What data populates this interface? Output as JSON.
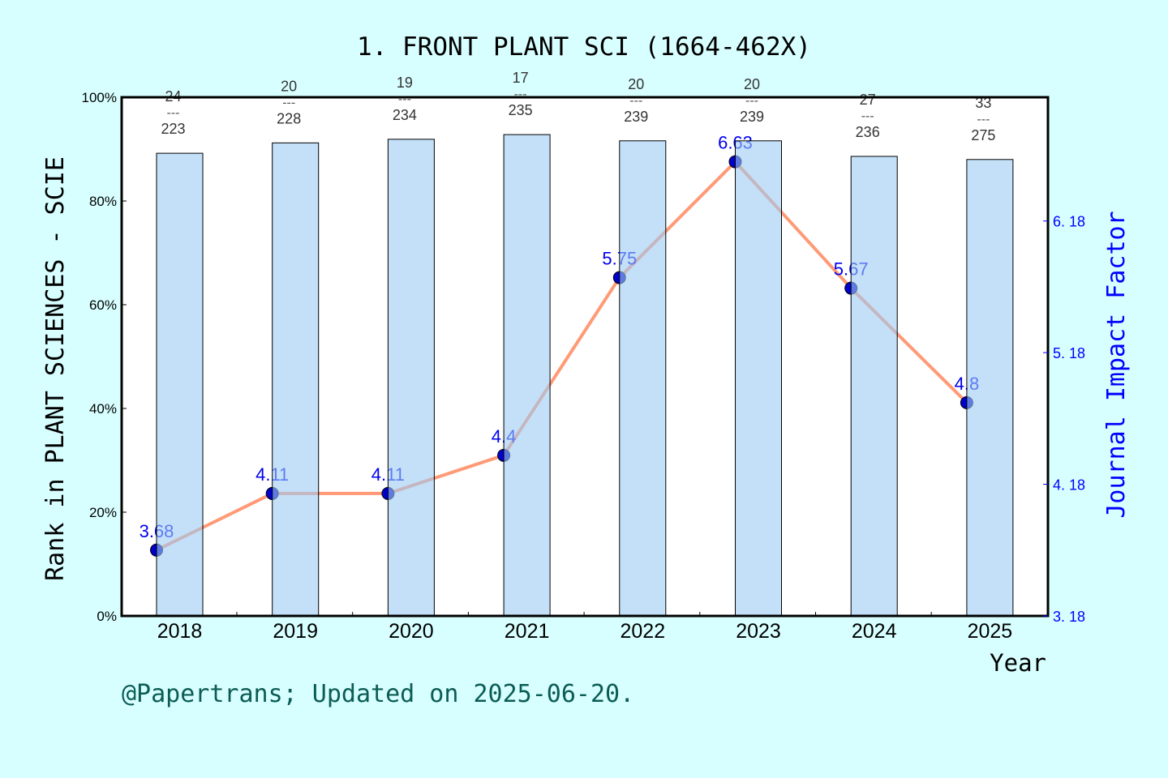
{
  "chart_data": {
    "type": "bar+line",
    "title": "1. FRONT PLANT SCI (1664-462X)",
    "xlabel": "Year",
    "ylabel_left": "Rank in PLANT SCIENCES - SCIE",
    "ylabel_right": "Journal Impact Factor",
    "categories": [
      "2018",
      "2019",
      "2020",
      "2021",
      "2022",
      "2023",
      "2024",
      "2025"
    ],
    "left_axis": {
      "ylim": [
        0,
        100
      ],
      "ticks": [
        "0%",
        "20%",
        "40%",
        "60%",
        "80%",
        "100%"
      ]
    },
    "right_axis": {
      "ylim": [
        3.18,
        7.12
      ],
      "ticks": [
        "3.18",
        "4.18",
        "5.18",
        "6.18"
      ],
      "color": "#0000ff"
    },
    "bars": {
      "rank": [
        24,
        20,
        19,
        17,
        20,
        20,
        27,
        33
      ],
      "total": [
        223,
        228,
        234,
        235,
        239,
        239,
        236,
        275
      ],
      "values": [
        89.2,
        91.2,
        91.9,
        92.8,
        91.6,
        91.6,
        88.6,
        88.0
      ],
      "color": "#c5e0f7"
    },
    "line": {
      "values": [
        3.68,
        4.11,
        4.11,
        4.4,
        5.75,
        6.63,
        5.67,
        4.8
      ],
      "labels": [
        "3.68",
        "4.11",
        "4.11",
        "4.4",
        "5.75",
        "6.63",
        "5.67",
        "4.8"
      ],
      "line_color": "#ff9a76",
      "marker_color": "#0000cc"
    },
    "grid": false
  },
  "footer": "@Papertrans; Updated on 2025-06-20.",
  "background": "#d8ffff"
}
